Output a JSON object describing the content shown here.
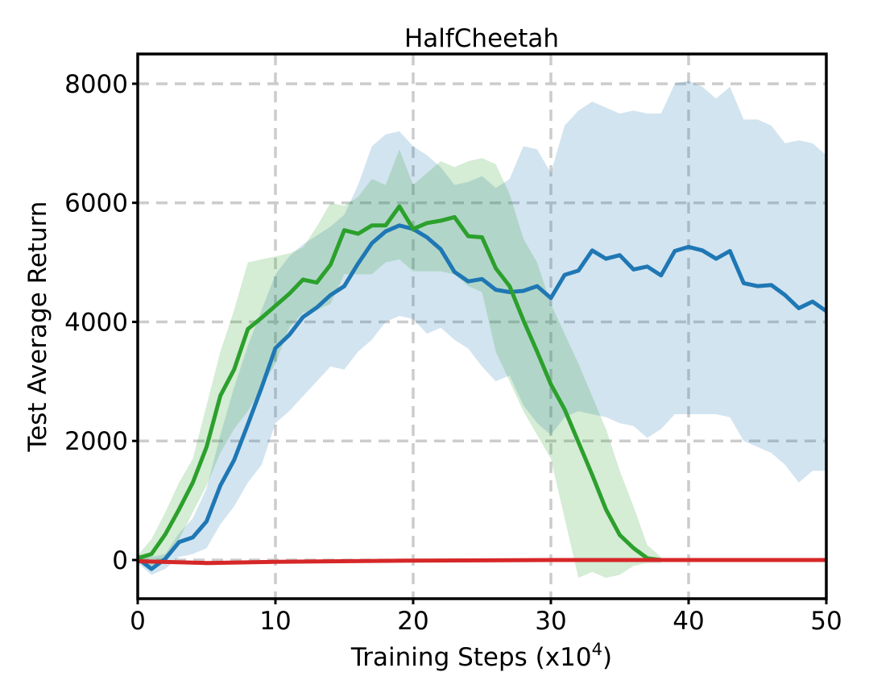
{
  "chart_data": {
    "type": "line",
    "title": "HalfCheetah",
    "xlabel": "Training Steps (x10",
    "xlabel_superscript": "4",
    "xlabel_suffix": ")",
    "ylabel": "Test Average Return",
    "xlim": [
      0,
      50
    ],
    "ylim": [
      -650,
      8500
    ],
    "xticks": [
      0,
      10,
      20,
      30,
      40,
      50
    ],
    "yticks": [
      0,
      2000,
      4000,
      6000,
      8000
    ],
    "grid": true,
    "series": [
      {
        "name": "blue",
        "color": "#1f77b4",
        "band_color": "#1f77b4",
        "x": [
          0,
          1,
          2,
          3,
          4,
          5,
          6,
          7,
          8,
          9,
          10,
          11,
          12,
          13,
          14,
          15,
          16,
          17,
          18,
          19,
          20,
          21,
          22,
          23,
          24,
          25,
          26,
          27,
          28,
          29,
          30,
          31,
          32,
          33,
          34,
          35,
          36,
          37,
          38,
          39,
          40,
          41,
          42,
          43,
          44,
          45,
          46,
          47,
          48,
          49,
          50
        ],
        "mean": [
          30,
          -150,
          20,
          300,
          380,
          650,
          1250,
          1680,
          2280,
          2900,
          3560,
          3780,
          4080,
          4240,
          4450,
          4600,
          4980,
          5320,
          5520,
          5620,
          5560,
          5420,
          5220,
          4840,
          4680,
          4720,
          4540,
          4500,
          4520,
          4600,
          4400,
          4790,
          4860,
          5200,
          5060,
          5120,
          4880,
          4930,
          4780,
          5190,
          5260,
          5200,
          5060,
          5190,
          4650,
          4600,
          4620,
          4450,
          4230,
          4340,
          4180
        ],
        "upper": [
          100,
          50,
          100,
          450,
          700,
          1200,
          2100,
          2900,
          3600,
          4200,
          4800,
          5100,
          5300,
          5450,
          5600,
          5800,
          6300,
          6950,
          7150,
          7200,
          6950,
          6800,
          6600,
          6300,
          6350,
          6450,
          6250,
          6400,
          6950,
          6900,
          6500,
          7300,
          7550,
          7700,
          7600,
          7500,
          7550,
          7500,
          7500,
          8000,
          8050,
          7950,
          7750,
          7950,
          7400,
          7400,
          7300,
          7000,
          7050,
          7000,
          6800
        ],
        "lower": [
          -50,
          -250,
          -150,
          50,
          100,
          200,
          600,
          900,
          1300,
          1600,
          2300,
          2500,
          2750,
          3000,
          3250,
          3200,
          3500,
          3700,
          4000,
          4100,
          4050,
          3800,
          3900,
          3700,
          3550,
          3250,
          3000,
          3100,
          2600,
          2300,
          2100,
          2400,
          2500,
          2450,
          2400,
          2300,
          2250,
          2050,
          2200,
          2450,
          2450,
          2450,
          2450,
          2400,
          2000,
          1900,
          1800,
          1600,
          1300,
          1500,
          1500
        ]
      },
      {
        "name": "green",
        "color": "#2ca02c",
        "band_color": "#2ca02c",
        "x": [
          0,
          1,
          2,
          3,
          4,
          5,
          6,
          7,
          8,
          9,
          10,
          11,
          12,
          13,
          14,
          15,
          16,
          17,
          18,
          19,
          20,
          21,
          22,
          23,
          24,
          25,
          26,
          27,
          28,
          29,
          30,
          31,
          32,
          33,
          34,
          35,
          36,
          37,
          38
        ],
        "mean": [
          30,
          100,
          430,
          850,
          1300,
          1900,
          2760,
          3200,
          3880,
          4070,
          4270,
          4470,
          4710,
          4660,
          4960,
          5540,
          5480,
          5620,
          5620,
          5940,
          5560,
          5660,
          5700,
          5760,
          5440,
          5420,
          4900,
          4600,
          4030,
          3500,
          2950,
          2530,
          1980,
          1430,
          850,
          420,
          200,
          30,
          0
        ],
        "upper": [
          80,
          350,
          800,
          1300,
          1700,
          2600,
          3500,
          4200,
          5000,
          5050,
          5100,
          5150,
          5250,
          5600,
          6000,
          5950,
          6100,
          6400,
          6300,
          6900,
          6300,
          6500,
          6700,
          6600,
          6700,
          6750,
          6650,
          6150,
          5400,
          5000,
          4300,
          3800,
          3300,
          2750,
          2200,
          1500,
          900,
          250,
          50
        ],
        "lower": [
          0,
          -100,
          50,
          350,
          800,
          1250,
          1800,
          2200,
          2500,
          2900,
          3300,
          3900,
          4150,
          4200,
          4300,
          4800,
          4800,
          4800,
          5000,
          5050,
          4850,
          4850,
          4850,
          4800,
          4600,
          4500,
          3500,
          3000,
          2500,
          2100,
          1700,
          700,
          -300,
          -200,
          -300,
          -250,
          -100,
          -50,
          -50
        ]
      },
      {
        "name": "red",
        "color": "#d62728",
        "band_color": "#d62728",
        "x": [
          0,
          5,
          10,
          20,
          30,
          40,
          50
        ],
        "mean": [
          -20,
          -50,
          -30,
          -10,
          0,
          0,
          0
        ],
        "upper": [
          0,
          -20,
          0,
          0,
          10,
          10,
          10
        ],
        "lower": [
          -40,
          -90,
          -60,
          -30,
          -10,
          -10,
          -10
        ]
      }
    ]
  }
}
